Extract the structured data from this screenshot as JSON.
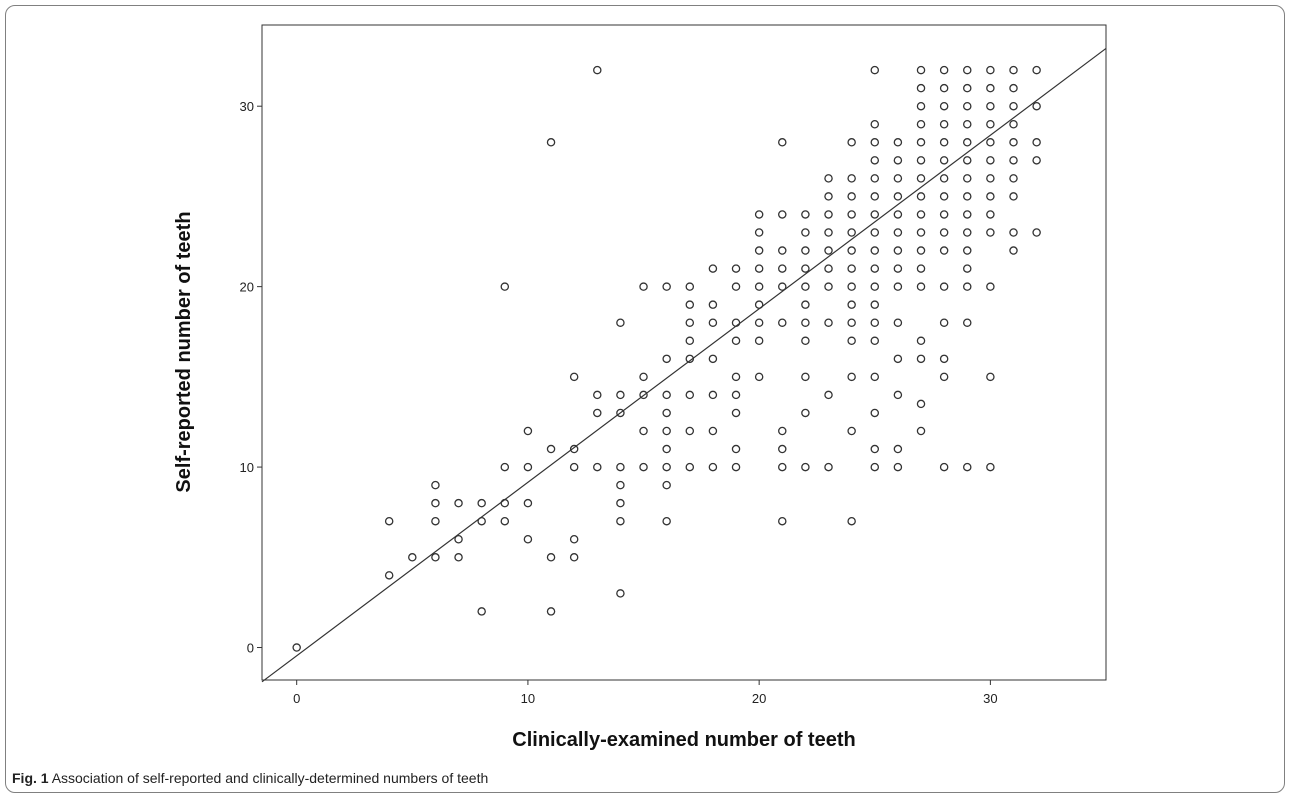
{
  "caption": {
    "label": "Fig. 1",
    "text": "Association of self-reported and clinically-determined numbers of teeth"
  },
  "chart_data": {
    "type": "scatter",
    "title": "",
    "xlabel": "Clinically-examined number of teeth",
    "ylabel": "Self-reported number of teeth",
    "xlim": [
      -1.5,
      35
    ],
    "ylim": [
      -1.8,
      34.5
    ],
    "xticks": [
      0,
      10,
      20,
      30
    ],
    "yticks": [
      0,
      10,
      20,
      30
    ],
    "grid": false,
    "legend": "none",
    "marker_color": "#333333",
    "fit_line": {
      "from": [
        -1.5,
        -1.9
      ],
      "to": [
        35,
        33.2
      ]
    },
    "points": [
      [
        0,
        0
      ],
      [
        4,
        4
      ],
      [
        4,
        7
      ],
      [
        5,
        5
      ],
      [
        6,
        5
      ],
      [
        6,
        7
      ],
      [
        6,
        8
      ],
      [
        6,
        9
      ],
      [
        7,
        5
      ],
      [
        7,
        6
      ],
      [
        7,
        8
      ],
      [
        8,
        2
      ],
      [
        8,
        7
      ],
      [
        8,
        8
      ],
      [
        9,
        7
      ],
      [
        9,
        8
      ],
      [
        9,
        10
      ],
      [
        9,
        20
      ],
      [
        10,
        6
      ],
      [
        10,
        8
      ],
      [
        10,
        10
      ],
      [
        10,
        12
      ],
      [
        11,
        2
      ],
      [
        11,
        5
      ],
      [
        11,
        11
      ],
      [
        11,
        28
      ],
      [
        12,
        5
      ],
      [
        12,
        6
      ],
      [
        12,
        10
      ],
      [
        12,
        11
      ],
      [
        12,
        15
      ],
      [
        13,
        10
      ],
      [
        13,
        13
      ],
      [
        13,
        14
      ],
      [
        13,
        32
      ],
      [
        14,
        3
      ],
      [
        14,
        7
      ],
      [
        14,
        8
      ],
      [
        14,
        9
      ],
      [
        14,
        10
      ],
      [
        14,
        13
      ],
      [
        14,
        14
      ],
      [
        14,
        18
      ],
      [
        15,
        10
      ],
      [
        15,
        12
      ],
      [
        15,
        14
      ],
      [
        15,
        15
      ],
      [
        15,
        20
      ],
      [
        16,
        7
      ],
      [
        16,
        9
      ],
      [
        16,
        10
      ],
      [
        16,
        11
      ],
      [
        16,
        12
      ],
      [
        16,
        13
      ],
      [
        16,
        14
      ],
      [
        16,
        16
      ],
      [
        16,
        20
      ],
      [
        17,
        10
      ],
      [
        17,
        12
      ],
      [
        17,
        14
      ],
      [
        17,
        16
      ],
      [
        17,
        17
      ],
      [
        17,
        18
      ],
      [
        17,
        19
      ],
      [
        17,
        20
      ],
      [
        18,
        10
      ],
      [
        18,
        12
      ],
      [
        18,
        14
      ],
      [
        18,
        16
      ],
      [
        18,
        18
      ],
      [
        18,
        19
      ],
      [
        18,
        21
      ],
      [
        19,
        10
      ],
      [
        19,
        11
      ],
      [
        19,
        13
      ],
      [
        19,
        14
      ],
      [
        19,
        15
      ],
      [
        19,
        17
      ],
      [
        19,
        18
      ],
      [
        19,
        20
      ],
      [
        19,
        21
      ],
      [
        20,
        15
      ],
      [
        20,
        17
      ],
      [
        20,
        18
      ],
      [
        20,
        19
      ],
      [
        20,
        20
      ],
      [
        20,
        21
      ],
      [
        20,
        22
      ],
      [
        20,
        23
      ],
      [
        20,
        24
      ],
      [
        21,
        7
      ],
      [
        21,
        10
      ],
      [
        21,
        11
      ],
      [
        21,
        12
      ],
      [
        21,
        18
      ],
      [
        21,
        20
      ],
      [
        21,
        21
      ],
      [
        21,
        22
      ],
      [
        21,
        24
      ],
      [
        21,
        28
      ],
      [
        22,
        10
      ],
      [
        22,
        13
      ],
      [
        22,
        15
      ],
      [
        22,
        17
      ],
      [
        22,
        18
      ],
      [
        22,
        19
      ],
      [
        22,
        20
      ],
      [
        22,
        21
      ],
      [
        22,
        22
      ],
      [
        22,
        23
      ],
      [
        22,
        24
      ],
      [
        23,
        10
      ],
      [
        23,
        14
      ],
      [
        23,
        18
      ],
      [
        23,
        20
      ],
      [
        23,
        21
      ],
      [
        23,
        22
      ],
      [
        23,
        23
      ],
      [
        23,
        24
      ],
      [
        23,
        25
      ],
      [
        23,
        26
      ],
      [
        24,
        7
      ],
      [
        24,
        12
      ],
      [
        24,
        15
      ],
      [
        24,
        17
      ],
      [
        24,
        18
      ],
      [
        24,
        19
      ],
      [
        24,
        20
      ],
      [
        24,
        21
      ],
      [
        24,
        22
      ],
      [
        24,
        23
      ],
      [
        24,
        24
      ],
      [
        24,
        25
      ],
      [
        24,
        26
      ],
      [
        24,
        28
      ],
      [
        25,
        10
      ],
      [
        25,
        11
      ],
      [
        25,
        13
      ],
      [
        25,
        15
      ],
      [
        25,
        17
      ],
      [
        25,
        18
      ],
      [
        25,
        19
      ],
      [
        25,
        20
      ],
      [
        25,
        21
      ],
      [
        25,
        22
      ],
      [
        25,
        23
      ],
      [
        25,
        24
      ],
      [
        25,
        25
      ],
      [
        25,
        26
      ],
      [
        25,
        27
      ],
      [
        25,
        28
      ],
      [
        25,
        29
      ],
      [
        25,
        32
      ],
      [
        26,
        10
      ],
      [
        26,
        11
      ],
      [
        26,
        14
      ],
      [
        26,
        16
      ],
      [
        26,
        18
      ],
      [
        26,
        20
      ],
      [
        26,
        21
      ],
      [
        26,
        22
      ],
      [
        26,
        23
      ],
      [
        26,
        24
      ],
      [
        26,
        25
      ],
      [
        26,
        26
      ],
      [
        26,
        27
      ],
      [
        26,
        28
      ],
      [
        27,
        12
      ],
      [
        27,
        13.5
      ],
      [
        27,
        16
      ],
      [
        27,
        17
      ],
      [
        27,
        20
      ],
      [
        27,
        21
      ],
      [
        27,
        22
      ],
      [
        27,
        23
      ],
      [
        27,
        24
      ],
      [
        27,
        25
      ],
      [
        27,
        26
      ],
      [
        27,
        27
      ],
      [
        27,
        28
      ],
      [
        27,
        29
      ],
      [
        27,
        30
      ],
      [
        27,
        31
      ],
      [
        27,
        32
      ],
      [
        28,
        10
      ],
      [
        28,
        15
      ],
      [
        28,
        16
      ],
      [
        28,
        18
      ],
      [
        28,
        20
      ],
      [
        28,
        22
      ],
      [
        28,
        23
      ],
      [
        28,
        24
      ],
      [
        28,
        25
      ],
      [
        28,
        26
      ],
      [
        28,
        27
      ],
      [
        28,
        28
      ],
      [
        28,
        29
      ],
      [
        28,
        30
      ],
      [
        28,
        31
      ],
      [
        28,
        32
      ],
      [
        29,
        10
      ],
      [
        29,
        18
      ],
      [
        29,
        20
      ],
      [
        29,
        21
      ],
      [
        29,
        22
      ],
      [
        29,
        23
      ],
      [
        29,
        24
      ],
      [
        29,
        25
      ],
      [
        29,
        26
      ],
      [
        29,
        27
      ],
      [
        29,
        28
      ],
      [
        29,
        29
      ],
      [
        29,
        30
      ],
      [
        29,
        31
      ],
      [
        29,
        32
      ],
      [
        30,
        10
      ],
      [
        30,
        15
      ],
      [
        30,
        20
      ],
      [
        30,
        23
      ],
      [
        30,
        24
      ],
      [
        30,
        25
      ],
      [
        30,
        26
      ],
      [
        30,
        27
      ],
      [
        30,
        28
      ],
      [
        30,
        29
      ],
      [
        30,
        30
      ],
      [
        30,
        31
      ],
      [
        30,
        32
      ],
      [
        31,
        22
      ],
      [
        31,
        23
      ],
      [
        31,
        25
      ],
      [
        31,
        26
      ],
      [
        31,
        27
      ],
      [
        31,
        28
      ],
      [
        31,
        29
      ],
      [
        31,
        30
      ],
      [
        31,
        31
      ],
      [
        31,
        32
      ],
      [
        32,
        23
      ],
      [
        32,
        27
      ],
      [
        32,
        28
      ],
      [
        32,
        30
      ],
      [
        32,
        32
      ]
    ]
  }
}
